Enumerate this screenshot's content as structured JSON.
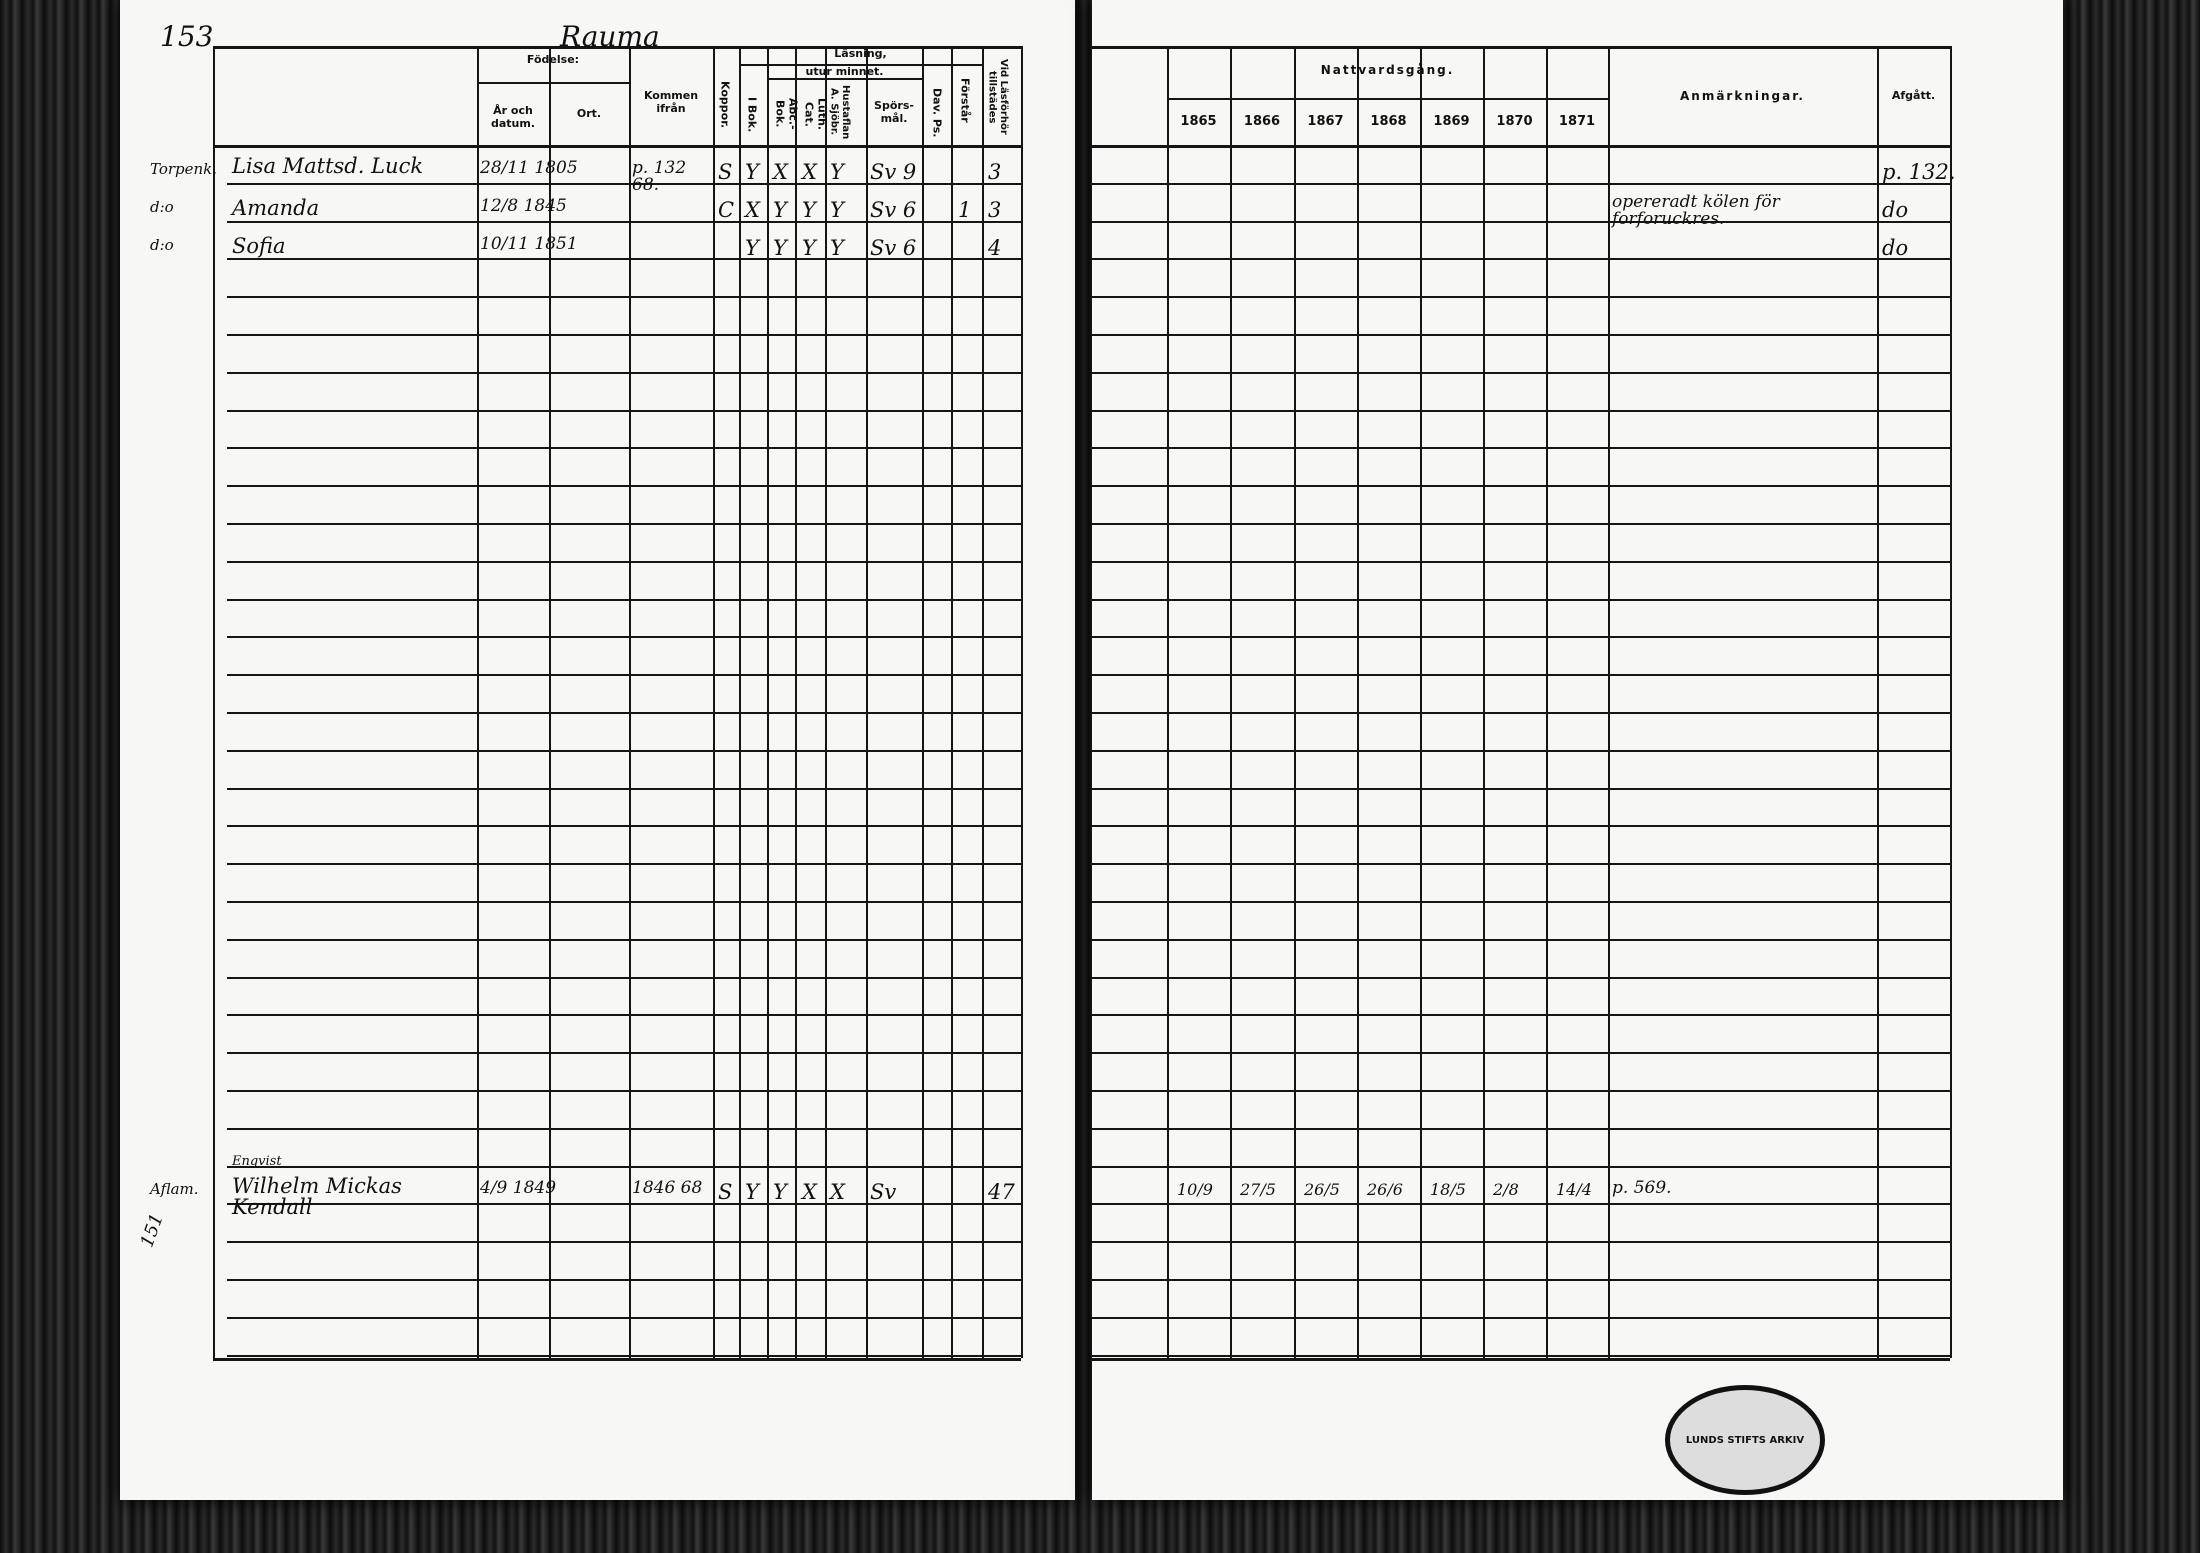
{
  "page_number": "153",
  "parish": "Rauma",
  "left_headers": {
    "fodelse": "Födelse:",
    "ar_datum": "År och datum.",
    "ort": "Ort.",
    "kommen_ifran": "Kommen ifrån",
    "koppor": "Koppor.",
    "lasning": "Läsning,",
    "utur_minnet": "utur minnet.",
    "i_bok": "I Bok.",
    "abc_bok": "Abc.-Bok.",
    "luth_cat": "Luth. Cat.",
    "hustaflan": "Hustaflan A. Sjöbr.",
    "sporsmal": "Spörs-mål.",
    "dav_ps": "Dav. Ps.",
    "forstar": "Förstår",
    "vid_lasforhor": "Vid Läsförhör tillstädes"
  },
  "right_headers": {
    "nattvardsgang": "Nattvardsgång.",
    "years": [
      "1865",
      "1866",
      "1867",
      "1868",
      "1869",
      "1870",
      "1871"
    ],
    "anmarkningar": "Anmärkningar.",
    "afgatt": "Afgått."
  },
  "entries": [
    {
      "role": "Torpenk.",
      "name": "Lisa Mattsd. Luck",
      "born": "28/11 1805",
      "kommen": "p. 132 68.",
      "koppor": "S",
      "i_bok": "Y",
      "abc": "X",
      "luth": "X",
      "hust": "Y",
      "spors": "Sv 9",
      "forstar": "",
      "vid": "3",
      "anm": "",
      "afgatt": "p. 132."
    },
    {
      "role": "d:o",
      "name": "Amanda",
      "born": "12/8 1845",
      "kommen": "",
      "koppor": "C",
      "i_bok": "X",
      "abc": "Y",
      "luth": "Y",
      "hust": "Y",
      "spors": "Sv 6",
      "forstar": "1",
      "vid": "3",
      "anm": "opereradt kölen för forforuckres.",
      "afgatt": "do"
    },
    {
      "role": "d:o",
      "name": "Sofia",
      "born": "10/11 1851",
      "kommen": "",
      "koppor": "",
      "i_bok": "Y",
      "abc": "Y",
      "luth": "Y",
      "hust": "Y",
      "spors": "Sv 6",
      "forstar": "",
      "vid": "4",
      "anm": "",
      "afgatt": "do"
    },
    {
      "role": "Aflam.",
      "name": "Wilhelm Mickas Kendall",
      "note": "Enqvist",
      "born": "4/9 1849",
      "kommen": "1846 68",
      "koppor": "S",
      "i_bok": "Y",
      "abc": "Y",
      "luth": "X",
      "hust": "X",
      "spors": "Sv",
      "forstar": "",
      "vid": "47",
      "communion": [
        "10/9",
        "27/5",
        "26/5",
        "26/6",
        "18/5",
        "2/8",
        "14/4"
      ],
      "anm": "p. 569.",
      "afgatt": ""
    }
  ],
  "margin_note": "151",
  "stamp_text": "LUNDS STIFTS ARKIV"
}
